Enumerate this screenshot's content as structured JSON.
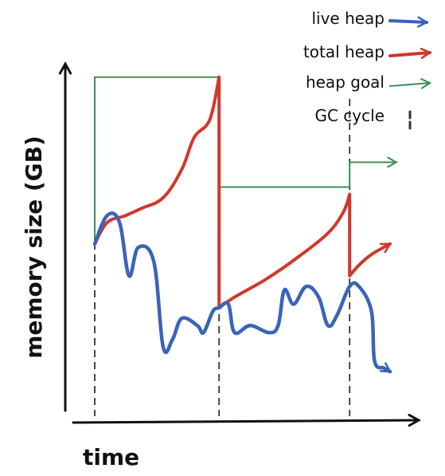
{
  "chart_data": {
    "type": "line",
    "xlabel": "time",
    "ylabel": "memory size (GB)",
    "grid": false,
    "legend_position": "top-right",
    "legend": [
      {
        "label": "live heap",
        "color": "#3a64b8"
      },
      {
        "label": "total heap",
        "color": "#d0382b"
      },
      {
        "label": "heap goal",
        "color": "#3f8f5a"
      },
      {
        "label": "GC cycle",
        "color": "#333333"
      }
    ],
    "gc_cycles": [
      1,
      5,
      9.2
    ],
    "series": [
      {
        "name": "live heap",
        "color": "#3a64b8",
        "points": [
          [
            1,
            0.47
          ],
          [
            1.4,
            0.55
          ],
          [
            1.8,
            0.53
          ],
          [
            2.1,
            0.38
          ],
          [
            2.4,
            0.46
          ],
          [
            2.9,
            0.42
          ],
          [
            3.2,
            0.18
          ],
          [
            3.5,
            0.2
          ],
          [
            3.8,
            0.26
          ],
          [
            4.3,
            0.24
          ],
          [
            4.5,
            0.22
          ],
          [
            4.8,
            0.28
          ],
          [
            5,
            0.29
          ],
          [
            5.3,
            0.3
          ],
          [
            5.5,
            0.22
          ],
          [
            6,
            0.24
          ],
          [
            6.6,
            0.22
          ],
          [
            6.9,
            0.24
          ],
          [
            7.1,
            0.34
          ],
          [
            7.4,
            0.3
          ],
          [
            7.8,
            0.35
          ],
          [
            8.2,
            0.32
          ],
          [
            8.5,
            0.24
          ],
          [
            8.8,
            0.27
          ],
          [
            9.2,
            0.35
          ],
          [
            9.5,
            0.35
          ],
          [
            9.9,
            0.28
          ],
          [
            10,
            0.14
          ],
          [
            10.3,
            0.12
          ],
          [
            10.5,
            0.11
          ]
        ]
      },
      {
        "name": "total heap",
        "color": "#d0382b",
        "points": [
          [
            1,
            0.47
          ],
          [
            1.4,
            0.53
          ],
          [
            2,
            0.55
          ],
          [
            2.5,
            0.57
          ],
          [
            3.2,
            0.6
          ],
          [
            3.8,
            0.68
          ],
          [
            4.2,
            0.77
          ],
          [
            4.7,
            0.82
          ],
          [
            5,
            0.94
          ],
          [
            5,
            0.29
          ],
          [
            5.5,
            0.32
          ],
          [
            6.5,
            0.37
          ],
          [
            7.5,
            0.43
          ],
          [
            8.5,
            0.5
          ],
          [
            9,
            0.56
          ],
          [
            9.2,
            0.61
          ],
          [
            9.2,
            0.38
          ],
          [
            9.5,
            0.41
          ],
          [
            9.9,
            0.44
          ],
          [
            10.5,
            0.47
          ]
        ]
      },
      {
        "name": "heap goal",
        "color": "#3f8f5a",
        "points": [
          [
            1,
            0.47
          ],
          [
            1,
            0.94
          ],
          [
            5,
            0.94
          ],
          [
            5,
            0.63
          ],
          [
            9.2,
            0.63
          ],
          [
            9.2,
            0.7
          ],
          [
            10.7,
            0.7
          ]
        ]
      }
    ]
  }
}
